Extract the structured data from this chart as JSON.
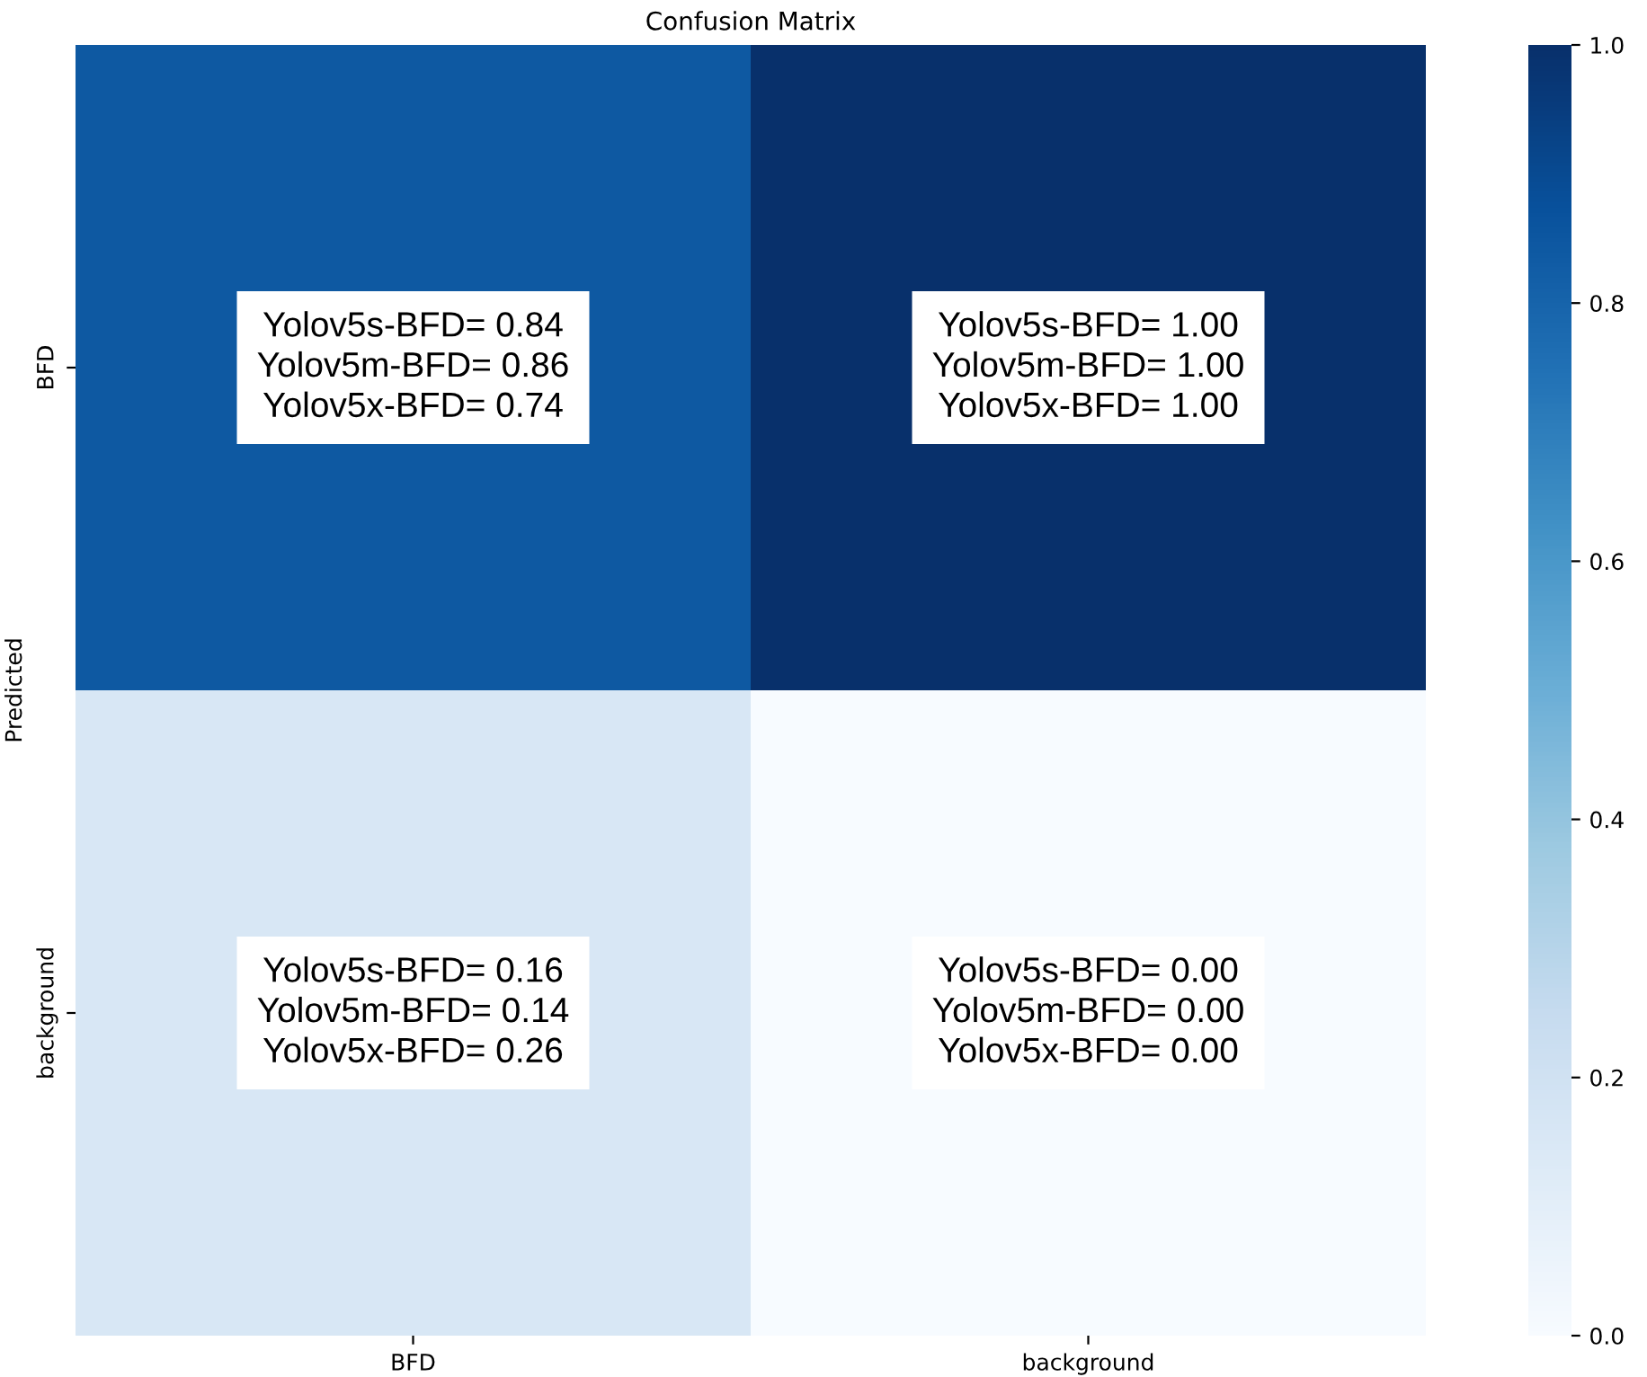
{
  "chart_data": {
    "type": "heatmap",
    "title": "Confusion Matrix",
    "ylabel": "Predicted",
    "categories": [
      "BFD",
      "background"
    ],
    "y_categories": [
      "BFD",
      "background"
    ],
    "cells": [
      [
        0.84,
        1.0
      ],
      [
        0.16,
        0.0
      ]
    ],
    "cell_labels": [
      [
        "Yolov5s-BFD= 0.84\nYolov5m-BFD= 0.86\nYolov5x-BFD= 0.74",
        "Yolov5s-BFD= 1.00\nYolov5m-BFD= 1.00\nYolov5x-BFD= 1.00"
      ],
      [
        "Yolov5s-BFD= 0.16\nYolov5m-BFD= 0.14\nYolov5x-BFD= 0.26",
        "Yolov5s-BFD= 0.00\nYolov5m-BFD= 0.00\nYolov5x-BFD= 0.00"
      ]
    ],
    "clim": [
      0.0,
      1.0
    ],
    "cticks": [
      {
        "value": 0.0,
        "label": "0.0"
      },
      {
        "value": 0.2,
        "label": "0.2"
      },
      {
        "value": 0.4,
        "label": "0.4"
      },
      {
        "value": 0.6,
        "label": "0.6"
      },
      {
        "value": 0.8,
        "label": "0.8"
      },
      {
        "value": 1.0,
        "label": "1.0"
      }
    ]
  }
}
